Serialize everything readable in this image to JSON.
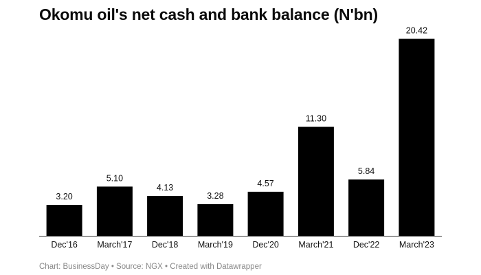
{
  "title": "Okomu oil's net cash and bank balance (N'bn)",
  "footer": "Chart: BusinessDay • Source: NGX • Created with Datawrapper",
  "colors": {
    "bar": "#000000",
    "axis": "#333333",
    "text": "#111111",
    "footer": "#888888"
  },
  "chart_data": {
    "type": "bar",
    "title": "Okomu oil's net cash and bank balance (N'bn)",
    "categories": [
      "Dec'16",
      "March'17",
      "Dec'18",
      "March'19",
      "Dec'20",
      "March'21",
      "Dec'22",
      "March'23"
    ],
    "values": [
      3.2,
      5.1,
      4.13,
      3.28,
      4.57,
      11.3,
      5.84,
      20.42
    ],
    "value_labels": [
      "3.20",
      "5.10",
      "4.13",
      "3.28",
      "4.57",
      "11.30",
      "5.84",
      "20.42"
    ],
    "xlabel": "",
    "ylabel": "",
    "grid": false,
    "legend": "none"
  }
}
